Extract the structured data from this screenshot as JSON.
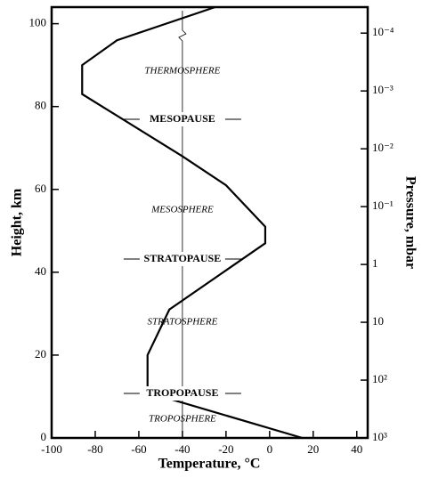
{
  "chart_data": {
    "type": "line",
    "x_label": "Temperature, °C",
    "y_label": "Height, km",
    "y2_label": "Pressure, mbar",
    "xlim": [
      -100,
      45
    ],
    "xticks": [
      -100,
      -80,
      -60,
      -40,
      -20,
      0,
      20,
      40
    ],
    "ylim": [
      0,
      104
    ],
    "yticks": [
      0,
      20,
      40,
      60,
      80,
      100
    ],
    "y2lim": [
      1000,
      3.55e-05
    ],
    "y2_log": true,
    "y2ticks": [
      {
        "value": 1000,
        "label": "10³"
      },
      {
        "value": 100,
        "label": "10²"
      },
      10,
      1,
      {
        "value": 0.1,
        "label": "10⁻¹"
      },
      {
        "value": 0.01,
        "label": "10⁻²"
      },
      {
        "value": 0.001,
        "label": "10⁻³"
      },
      {
        "value": 0.0001,
        "label": "10⁻⁴"
      }
    ],
    "series": [
      {
        "color": "#000000",
        "x": [
          15,
          -56,
          -56,
          -46,
          -2,
          -2,
          -20,
          -40,
          -86,
          -86,
          -70,
          -25
        ],
        "values": [
          0,
          11,
          20,
          31,
          47,
          51,
          61,
          68,
          83,
          90,
          96,
          104
        ]
      }
    ],
    "annotations": [
      "THERMOSPHERE",
      "MESOPAUSE",
      "MESOSPHERE",
      "STRATOPAUSE",
      "STRATOSPHERE",
      "TROPOPAUSE",
      "TROPOSPHERE"
    ]
  }
}
